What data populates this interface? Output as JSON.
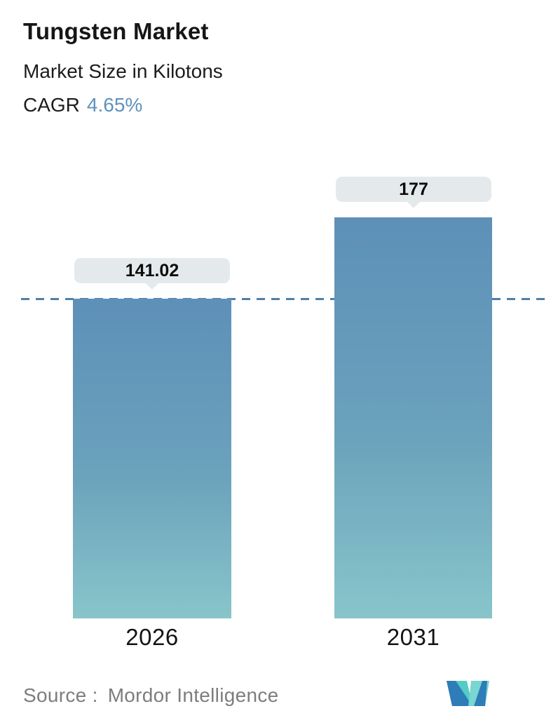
{
  "header": {
    "title": "Tungsten Market",
    "subtitle": "Market Size in Kilotons",
    "cagr_label": "CAGR",
    "cagr_value": "4.65%"
  },
  "chart_data": {
    "type": "bar",
    "title": "Tungsten Market",
    "ylabel": "Market Size in Kilotons",
    "categories": [
      "2026",
      "2031"
    ],
    "values": [
      141.02,
      177
    ],
    "value_labels": [
      "141.02",
      "177"
    ],
    "cagr_percent": 4.65,
    "baseline": 0,
    "reference_line": {
      "style": "dashed",
      "value": 141.02
    },
    "bar_gradient_top": "#5e90b8",
    "bar_gradient_bottom": "#88c5ca",
    "legend": "none",
    "grid": "off"
  },
  "footer": {
    "source_label": "Source :",
    "source_name": "Mordor Intelligence",
    "logo_name": "mordor-intelligence-logo"
  },
  "colors": {
    "accent_blue": "#6191bd",
    "tooltip_bg": "#e4eaeb",
    "dashed_line": "#4d80a9",
    "text_dark": "#1c1c1c",
    "text_gray": "#7d7d7d",
    "logo_blue": "#2e7cb8",
    "logo_teal_left": "#54cbc5",
    "logo_teal_right": "#79d6d0"
  }
}
